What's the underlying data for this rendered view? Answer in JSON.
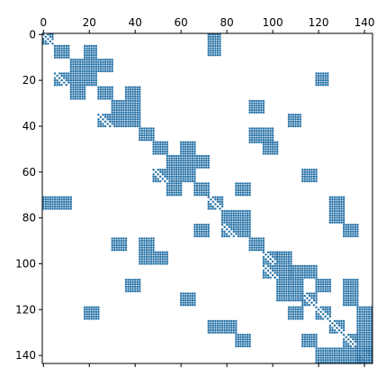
{
  "chart_data": {
    "type": "heatmap",
    "kind": "sparsity-pattern",
    "title": "",
    "xlabel": "",
    "ylabel": "",
    "n": 144,
    "xlim": [
      -0.5,
      143.5
    ],
    "ylim": [
      143.5,
      -0.5
    ],
    "x_ticks": [
      0,
      20,
      40,
      60,
      80,
      100,
      120,
      140
    ],
    "y_ticks": [
      0,
      20,
      40,
      60,
      80,
      100,
      120,
      140
    ],
    "x_tick_labels": [
      "0",
      "20",
      "40",
      "60",
      "80",
      "100",
      "120",
      "140"
    ],
    "y_tick_labels": [
      "0",
      "20",
      "40",
      "60",
      "80",
      "100",
      "120",
      "140"
    ],
    "x_ticks_position": "top",
    "grid": false,
    "marker_color": "#1f77b4",
    "blocks": [
      {
        "rows": [
          0,
          4
        ],
        "cols": [
          0,
          4
        ],
        "diag": true
      },
      {
        "rows": [
          0,
          9
        ],
        "cols": [
          72,
          77
        ]
      },
      {
        "rows": [
          5,
          10
        ],
        "cols": [
          5,
          11
        ]
      },
      {
        "rows": [
          5,
          10
        ],
        "cols": [
          18,
          23
        ]
      },
      {
        "rows": [
          11,
          16
        ],
        "cols": [
          12,
          30
        ]
      },
      {
        "rows": [
          17,
          22
        ],
        "cols": [
          5,
          23
        ],
        "diag": true
      },
      {
        "rows": [
          17,
          22
        ],
        "cols": [
          119,
          124
        ]
      },
      {
        "rows": [
          23,
          28
        ],
        "cols": [
          12,
          18
        ]
      },
      {
        "rows": [
          23,
          28
        ],
        "cols": [
          24,
          30
        ]
      },
      {
        "rows": [
          23,
          28
        ],
        "cols": [
          36,
          42
        ]
      },
      {
        "rows": [
          29,
          34
        ],
        "cols": [
          30,
          42
        ]
      },
      {
        "rows": [
          29,
          34
        ],
        "cols": [
          90,
          96
        ]
      },
      {
        "rows": [
          35,
          40
        ],
        "cols": [
          24,
          42
        ],
        "diag": true
      },
      {
        "rows": [
          35,
          40
        ],
        "cols": [
          107,
          112
        ]
      },
      {
        "rows": [
          41,
          46
        ],
        "cols": [
          42,
          48
        ]
      },
      {
        "rows": [
          41,
          47
        ],
        "cols": [
          90,
          100
        ]
      },
      {
        "rows": [
          47,
          52
        ],
        "cols": [
          48,
          54
        ]
      },
      {
        "rows": [
          47,
          52
        ],
        "cols": [
          60,
          66
        ]
      },
      {
        "rows": [
          47,
          52
        ],
        "cols": [
          96,
          102
        ]
      },
      {
        "rows": [
          53,
          58
        ],
        "cols": [
          54,
          72
        ]
      },
      {
        "rows": [
          59,
          64
        ],
        "cols": [
          48,
          66
        ],
        "diag": true
      },
      {
        "rows": [
          59,
          64
        ],
        "cols": [
          113,
          119
        ]
      },
      {
        "rows": [
          65,
          70
        ],
        "cols": [
          54,
          60
        ]
      },
      {
        "rows": [
          65,
          70
        ],
        "cols": [
          66,
          72
        ]
      },
      {
        "rows": [
          65,
          70
        ],
        "cols": [
          84,
          90
        ]
      },
      {
        "rows": [
          71,
          76
        ],
        "cols": [
          0,
          12
        ]
      },
      {
        "rows": [
          71,
          76
        ],
        "cols": [
          72,
          78
        ],
        "diag": true
      },
      {
        "rows": [
          71,
          82
        ],
        "cols": [
          125,
          131
        ]
      },
      {
        "rows": [
          77,
          82
        ],
        "cols": [
          78,
          90
        ]
      },
      {
        "rows": [
          83,
          88
        ],
        "cols": [
          66,
          72
        ]
      },
      {
        "rows": [
          83,
          88
        ],
        "cols": [
          78,
          90
        ],
        "diag": true
      },
      {
        "rows": [
          83,
          88
        ],
        "cols": [
          131,
          137
        ]
      },
      {
        "rows": [
          89,
          94
        ],
        "cols": [
          30,
          36
        ]
      },
      {
        "rows": [
          89,
          94
        ],
        "cols": [
          42,
          48
        ]
      },
      {
        "rows": [
          89,
          94
        ],
        "cols": [
          90,
          96
        ]
      },
      {
        "rows": [
          95,
          100
        ],
        "cols": [
          42,
          54
        ]
      },
      {
        "rows": [
          95,
          100
        ],
        "cols": [
          96,
          102
        ],
        "diag": true
      },
      {
        "rows": [
          95,
          100
        ],
        "cols": [
          102,
          108
        ]
      },
      {
        "rows": [
          101,
          106
        ],
        "cols": [
          96,
          108
        ],
        "diag": true
      },
      {
        "rows": [
          101,
          106
        ],
        "cols": [
          108,
          119
        ]
      },
      {
        "rows": [
          107,
          112
        ],
        "cols": [
          36,
          42
        ]
      },
      {
        "rows": [
          107,
          116
        ],
        "cols": [
          102,
          113
        ]
      },
      {
        "rows": [
          107,
          112
        ],
        "cols": [
          119,
          125
        ]
      },
      {
        "rows": [
          107,
          112
        ],
        "cols": [
          131,
          137
        ]
      },
      {
        "rows": [
          113,
          118
        ],
        "cols": [
          60,
          66
        ]
      },
      {
        "rows": [
          113,
          118
        ],
        "cols": [
          113,
          119
        ],
        "diag": true
      },
      {
        "rows": [
          113,
          118
        ],
        "cols": [
          131,
          137
        ]
      },
      {
        "rows": [
          119,
          124
        ],
        "cols": [
          18,
          24
        ]
      },
      {
        "rows": [
          119,
          124
        ],
        "cols": [
          107,
          113
        ]
      },
      {
        "rows": [
          119,
          124
        ],
        "cols": [
          119,
          125
        ],
        "diag": true
      },
      {
        "rows": [
          119,
          143
        ],
        "cols": [
          137,
          143
        ]
      },
      {
        "rows": [
          125,
          130
        ],
        "cols": [
          72,
          84
        ]
      },
      {
        "rows": [
          125,
          130
        ],
        "cols": [
          125,
          131
        ],
        "diag": true
      },
      {
        "rows": [
          131,
          136
        ],
        "cols": [
          84,
          90
        ]
      },
      {
        "rows": [
          131,
          136
        ],
        "cols": [
          113,
          119
        ]
      },
      {
        "rows": [
          131,
          136
        ],
        "cols": [
          131,
          137
        ],
        "diag": true
      },
      {
        "rows": [
          137,
          143
        ],
        "cols": [
          119,
          137
        ]
      },
      {
        "rows": [
          137,
          143
        ],
        "cols": [
          137,
          143
        ],
        "diag": true
      }
    ]
  }
}
